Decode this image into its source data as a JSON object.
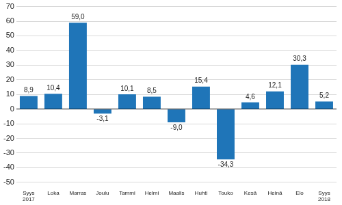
{
  "chart_data": {
    "type": "bar",
    "categories": [
      "Syys 2017",
      "Loka",
      "Marras",
      "Joulu",
      "Tammi",
      "Helmi",
      "Maalis",
      "Huhti",
      "Touko",
      "Kesä",
      "Heinä",
      "Elo",
      "Syys 2018"
    ],
    "values": [
      8.9,
      10.4,
      59.0,
      -3.1,
      10.1,
      8.5,
      -9.0,
      15.4,
      -34.3,
      4.6,
      12.1,
      30.3,
      5.2
    ],
    "value_labels": [
      "8,9",
      "10,4",
      "59,0",
      "-3,1",
      "10,1",
      "8,5",
      "-9,0",
      "15,4",
      "-34,3",
      "4,6",
      "12,1",
      "30,3",
      "5,2"
    ],
    "color": "#1f75b8",
    "ylim": [
      -50,
      70
    ],
    "yticks": [
      -50,
      -40,
      -30,
      -20,
      -10,
      0,
      10,
      20,
      30,
      40,
      50,
      60,
      70
    ],
    "grid": true,
    "data_labels": true
  }
}
